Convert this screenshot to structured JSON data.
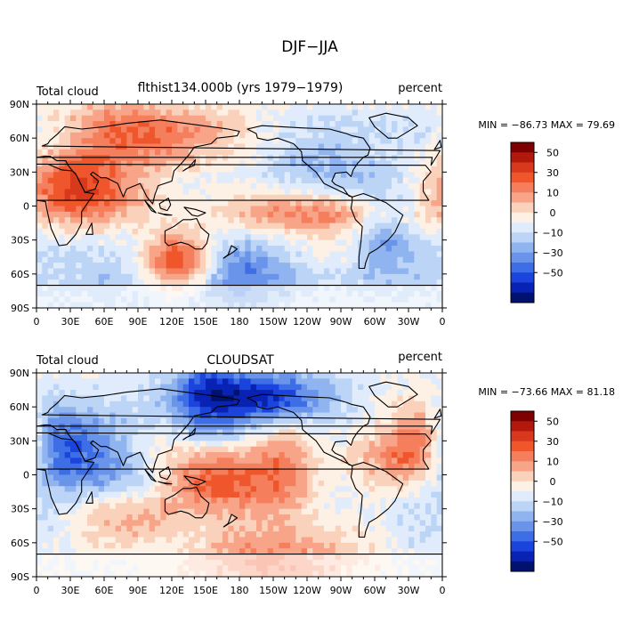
{
  "page": {
    "title": "DJF−JJA"
  },
  "panels": [
    {
      "left_label": "Total cloud",
      "center_label": "flthist134.000b (yrs 1979−1979)",
      "right_label": "percent",
      "stats": "MIN = −86.73 MAX =  79.69",
      "seed": 7
    },
    {
      "left_label": "Total cloud",
      "center_label": "CLOUDSAT",
      "right_label": "percent",
      "stats": "MIN = −73.66 MAX =  81.18",
      "seed": 23
    }
  ],
  "axes": {
    "y_ticks": [
      "90N",
      "60N",
      "30N",
      "0",
      "30S",
      "60S",
      "90S"
    ],
    "x_ticks": [
      "0",
      "30E",
      "60E",
      "90E",
      "120E",
      "150E",
      "180",
      "150W",
      "120W",
      "90W",
      "60W",
      "30W",
      "0"
    ]
  },
  "colorbar": {
    "labels": [
      "50",
      "30",
      "10",
      "0",
      "−10",
      "−30",
      "−50"
    ],
    "colors": [
      "#7f0000",
      "#b3180c",
      "#d8381c",
      "#f0562c",
      "#f57f5c",
      "#f7a488",
      "#fad2bc",
      "#fdf0e4",
      "#e0ecfb",
      "#bcd4f6",
      "#8fb4f0",
      "#6a94ea",
      "#3d6ee6",
      "#1a44dc",
      "#0823b4",
      "#00126e"
    ]
  }
}
